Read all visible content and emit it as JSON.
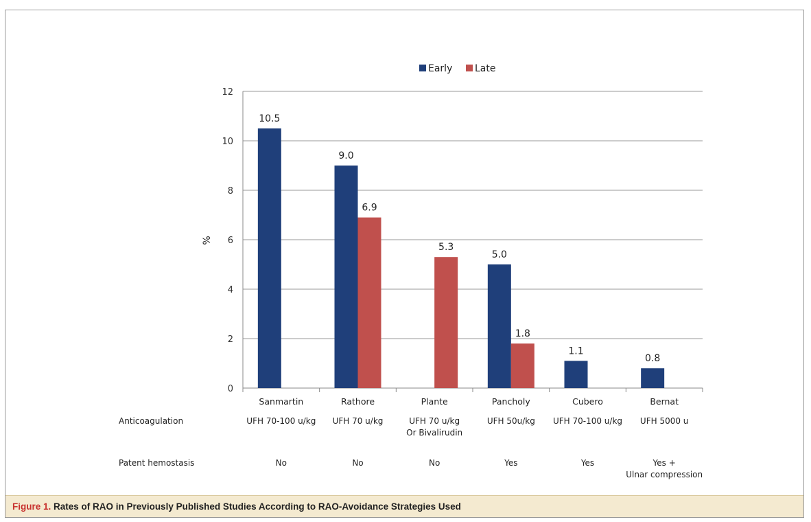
{
  "chart_data": {
    "type": "bar",
    "categories": [
      "Sanmartin",
      "Rathore",
      "Plante",
      "Pancholy",
      "Cubero",
      "Bernat"
    ],
    "series": [
      {
        "name": "Early",
        "color": "#1f3f7a",
        "values": [
          10.5,
          9.0,
          null,
          5.0,
          1.1,
          0.8
        ],
        "labels": [
          "10.5",
          "9.0",
          "",
          "5.0",
          "1.1",
          "0.8"
        ]
      },
      {
        "name": "Late",
        "color": "#c0504d",
        "values": [
          null,
          6.9,
          5.3,
          1.8,
          null,
          null
        ],
        "labels": [
          "",
          "6.9",
          "5.3",
          "1.8",
          "",
          ""
        ]
      }
    ],
    "ylabel": "%",
    "ylim": [
      0,
      12
    ],
    "yticks": [
      "0",
      "2",
      "4",
      "6",
      "8",
      "10",
      "12"
    ],
    "grid": true,
    "legend_position": "top-center"
  },
  "rows": [
    {
      "label": "Anticoagulation",
      "values": [
        [
          "UFH 70-100 u/kg"
        ],
        [
          "UFH 70 u/kg"
        ],
        [
          "UFH 70 u/kg",
          "Or Bivalirudin"
        ],
        [
          "UFH 50u/kg"
        ],
        [
          "UFH 70-100 u/kg"
        ],
        [
          "UFH 5000 u"
        ]
      ]
    },
    {
      "label": "Patent hemostasis",
      "values": [
        [
          "No"
        ],
        [
          "No"
        ],
        [
          "No"
        ],
        [
          "Yes"
        ],
        [
          "Yes"
        ],
        [
          "Yes +",
          "Ulnar compression"
        ]
      ]
    }
  ],
  "caption": {
    "number": "Figure 1.",
    "text": "Rates of RAO in Previously Published Studies According to RAO-Avoidance Strategies Used"
  }
}
